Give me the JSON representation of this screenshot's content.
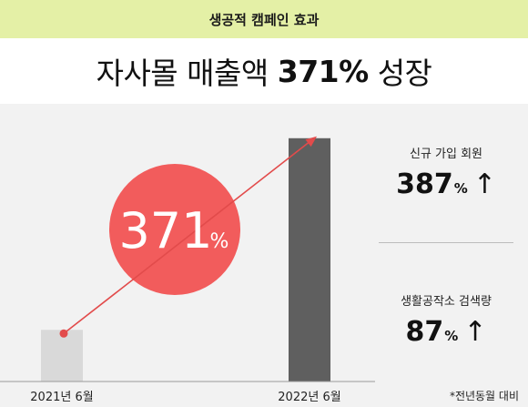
{
  "banner": {
    "text": "생공적 캠페인 효과"
  },
  "headline": {
    "prefix": "자사몰 매출액",
    "number": "371%",
    "suffix": "성장"
  },
  "chart_data": {
    "type": "bar",
    "categories": [
      "2021년 6월",
      "2022년 6월"
    ],
    "values": [
      100,
      471
    ],
    "ylim": [
      0,
      520
    ],
    "bar_colors": [
      "#d9d9d9",
      "#5f5f5f"
    ],
    "growth_label": {
      "number": "371",
      "unit": "%"
    },
    "growth_circle_color": "#f25c5c",
    "arrow_color": "#e24b4b",
    "grid": false
  },
  "stats": [
    {
      "label": "신규 가입 회원",
      "value": "387",
      "unit": "%",
      "arrow": "↑"
    },
    {
      "label": "생활공작소 검색량",
      "value": "87",
      "unit": "%",
      "arrow": "↑"
    }
  ],
  "footnote": "*전년동월 대비"
}
